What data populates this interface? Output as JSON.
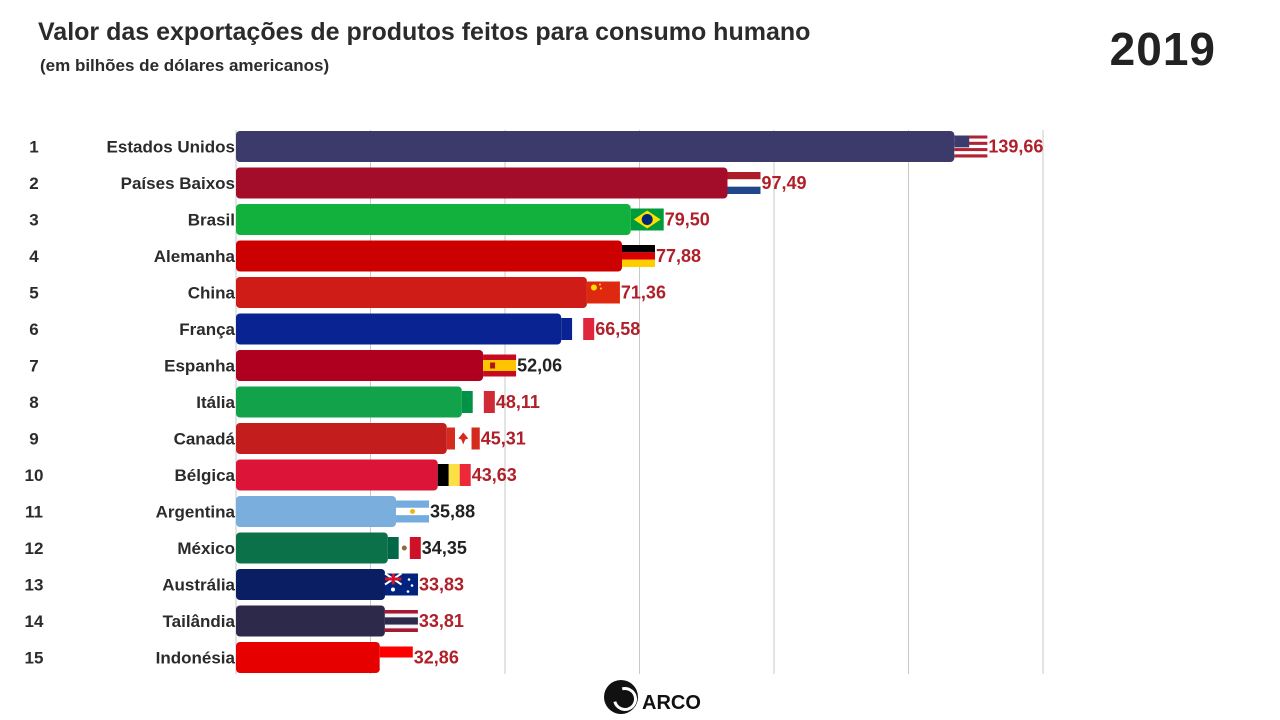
{
  "header": {
    "title": "Valor das exportações de produtos feitos para consumo humano",
    "subtitle": "(em bilhões de dólares americanos)",
    "year": "2019"
  },
  "logo": {
    "text": "ARCO",
    "icon": "arco-logo-icon"
  },
  "chart_data": {
    "type": "bar",
    "orientation": "horizontal",
    "title": "Valor das exportações de produtos feitos para consumo humano",
    "subtitle": "(em bilhões de dólares americanos)",
    "period": "2019",
    "xlim": [
      0,
      150
    ],
    "grid": true,
    "bars": [
      {
        "rank": "1",
        "country": "Estados Unidos",
        "value": 139.66,
        "label": "139,66",
        "color": "#3b3a6b",
        "value_color": "#b0202a",
        "flag": "us-flag-icon"
      },
      {
        "rank": "2",
        "country": "Países Baixos",
        "value": 97.49,
        "label": "97,49",
        "color": "#a30d2a",
        "value_color": "#b0202a",
        "flag": "netherlands-flag-icon"
      },
      {
        "rank": "3",
        "country": "Brasil",
        "value": 79.5,
        "label": "79,50",
        "color": "#12b03c",
        "value_color": "#b0202a",
        "flag": "brazil-flag-icon"
      },
      {
        "rank": "4",
        "country": "Alemanha",
        "value": 77.88,
        "label": "77,88",
        "color": "#cc0000",
        "value_color": "#b0202a",
        "flag": "germany-flag-icon"
      },
      {
        "rank": "5",
        "country": "China",
        "value": 71.36,
        "label": "71,36",
        "color": "#d01c17",
        "value_color": "#b0202a",
        "flag": "china-flag-icon"
      },
      {
        "rank": "6",
        "country": "França",
        "value": 66.58,
        "label": "66,58",
        "color": "#0a2392",
        "value_color": "#b0202a",
        "flag": "france-flag-icon"
      },
      {
        "rank": "7",
        "country": "Espanha",
        "value": 52.06,
        "label": "52,06",
        "color": "#b00020",
        "value_color": "#222222",
        "flag": "spain-flag-icon"
      },
      {
        "rank": "8",
        "country": "Itália",
        "value": 48.11,
        "label": "48,11",
        "color": "#12a34a",
        "value_color": "#b0202a",
        "flag": "italy-flag-icon"
      },
      {
        "rank": "9",
        "country": "Canadá",
        "value": 45.31,
        "label": "45,31",
        "color": "#c41d1d",
        "value_color": "#b0202a",
        "flag": "canada-flag-icon"
      },
      {
        "rank": "10",
        "country": "Bélgica",
        "value": 43.63,
        "label": "43,63",
        "color": "#db1438",
        "value_color": "#b0202a",
        "flag": "belgium-flag-icon"
      },
      {
        "rank": "11",
        "country": "Argentina",
        "value": 35.88,
        "label": "35,88",
        "color": "#7aafdd",
        "value_color": "#222222",
        "flag": "argentina-flag-icon"
      },
      {
        "rank": "12",
        "country": "México",
        "value": 34.35,
        "label": "34,35",
        "color": "#0b7148",
        "value_color": "#222222",
        "flag": "mexico-flag-icon"
      },
      {
        "rank": "13",
        "country": "Austrália",
        "value": 33.83,
        "label": "33,83",
        "color": "#0a1e64",
        "value_color": "#b0202a",
        "flag": "australia-flag-icon"
      },
      {
        "rank": "14",
        "country": "Tailândia",
        "value": 33.81,
        "label": "33,81",
        "color": "#2c294a",
        "value_color": "#b0202a",
        "flag": "thailand-flag-icon"
      },
      {
        "rank": "15",
        "country": "Indonésia",
        "value": 32.86,
        "label": "32,86",
        "color": "#e60000",
        "value_color": "#b0202a",
        "flag": "indonesia-flag-icon"
      }
    ]
  }
}
